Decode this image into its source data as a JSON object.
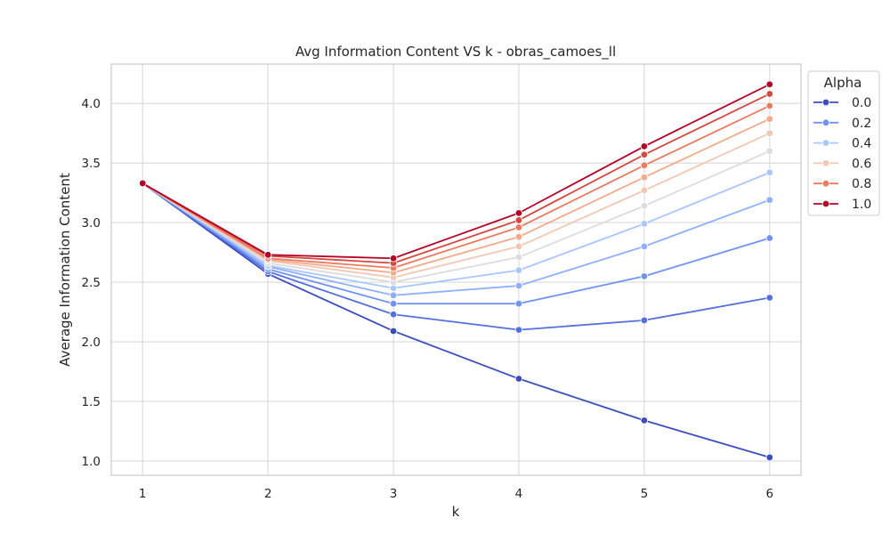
{
  "chart_data": {
    "type": "line",
    "title": "Avg Information Content VS k - obras_camoes_ll",
    "xlabel": "k",
    "ylabel": "Average Information Content",
    "x": [
      1,
      2,
      3,
      4,
      5,
      6
    ],
    "xlim": [
      0.75,
      6.25
    ],
    "ylim": [
      0.88,
      4.33
    ],
    "yticks": [
      1.0,
      1.5,
      2.0,
      2.5,
      3.0,
      3.5,
      4.0
    ],
    "ytick_labels": [
      "1.0",
      "1.5",
      "2.0",
      "2.5",
      "3.0",
      "3.5",
      "4.0"
    ],
    "xtick_labels": [
      "1",
      "2",
      "3",
      "4",
      "5",
      "6"
    ],
    "grid": true,
    "legend": {
      "title": "Alpha",
      "placement": "outside-top-right",
      "entries": [
        "0.0",
        "0.2",
        "0.4",
        "0.6",
        "0.8",
        "1.0"
      ]
    },
    "series": [
      {
        "alpha": 0.0,
        "color": "#3b4cc0",
        "values": [
          3.33,
          2.57,
          2.09,
          1.69,
          1.34,
          1.03
        ]
      },
      {
        "alpha": 0.1,
        "color": "#5470de",
        "values": [
          3.33,
          2.59,
          2.23,
          2.1,
          2.18,
          2.37
        ]
      },
      {
        "alpha": 0.2,
        "color": "#7093f3",
        "values": [
          3.33,
          2.61,
          2.32,
          2.32,
          2.55,
          2.87
        ]
      },
      {
        "alpha": 0.3,
        "color": "#8db0fe",
        "values": [
          3.33,
          2.63,
          2.39,
          2.47,
          2.8,
          3.19
        ]
      },
      {
        "alpha": 0.4,
        "color": "#aac7fd",
        "values": [
          3.33,
          2.64,
          2.45,
          2.6,
          2.99,
          3.42
        ]
      },
      {
        "alpha": 0.5,
        "color": "#dddcdc",
        "values": [
          3.33,
          2.66,
          2.5,
          2.71,
          3.14,
          3.6
        ]
      },
      {
        "alpha": 0.6,
        "color": "#f2c8b4",
        "values": [
          3.33,
          2.68,
          2.54,
          2.8,
          3.27,
          3.75
        ]
      },
      {
        "alpha": 0.7,
        "color": "#f5a98b",
        "values": [
          3.33,
          2.69,
          2.58,
          2.88,
          3.38,
          3.87
        ]
      },
      {
        "alpha": 0.8,
        "color": "#ea7b60",
        "values": [
          3.33,
          2.7,
          2.62,
          2.96,
          3.48,
          3.98
        ]
      },
      {
        "alpha": 0.9,
        "color": "#d1493f",
        "values": [
          3.33,
          2.72,
          2.66,
          3.02,
          3.57,
          4.08
        ]
      },
      {
        "alpha": 1.0,
        "color": "#b40426",
        "values": [
          3.33,
          2.73,
          2.7,
          3.08,
          3.64,
          4.16
        ]
      }
    ],
    "legend_series_index": [
      0,
      2,
      4,
      6,
      8,
      10
    ]
  }
}
